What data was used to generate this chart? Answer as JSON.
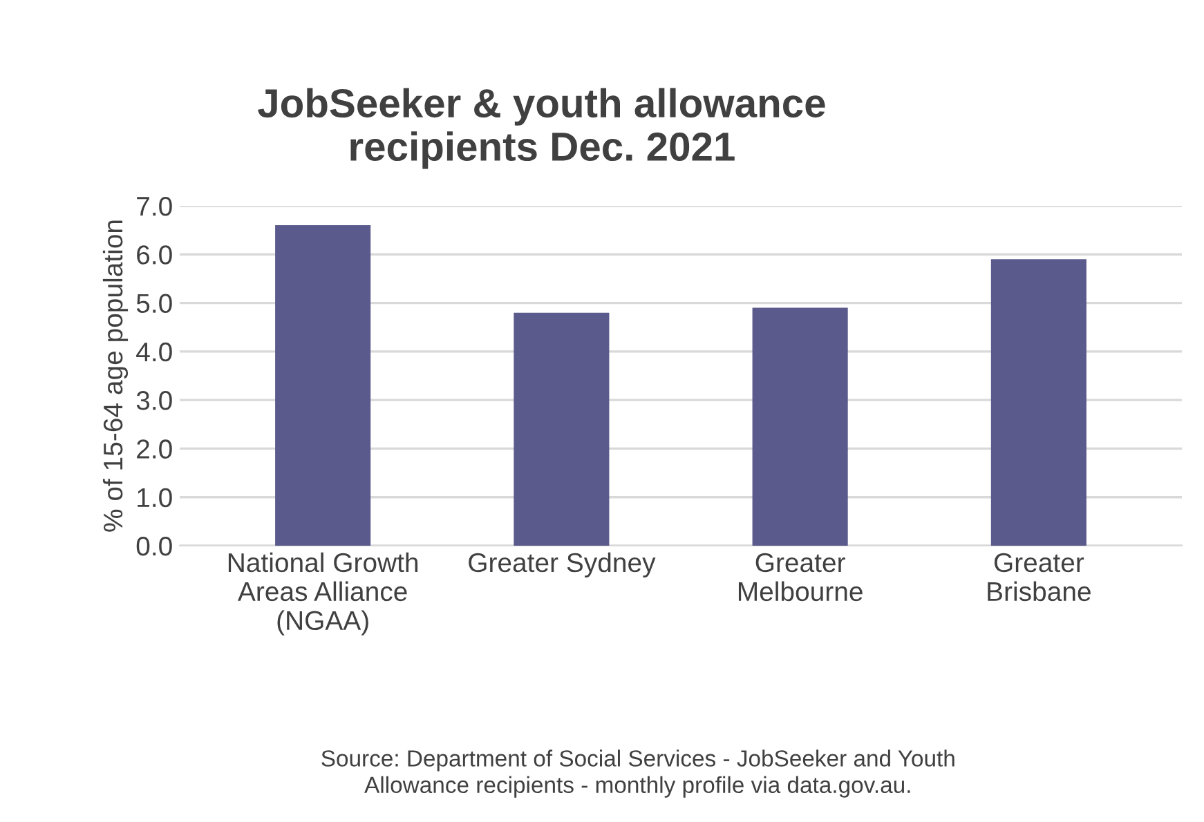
{
  "chart_data": {
    "type": "bar",
    "title": "JobSeeker & youth allowance\nrecipients Dec. 2021",
    "ylabel": "% of 15-64 age population",
    "categories": [
      "National Growth\nAreas Alliance\n(NGAA)",
      "Greater Sydney",
      "Greater\nMelbourne",
      "Greater\nBrisbane"
    ],
    "values": [
      6.6,
      4.8,
      4.9,
      5.9
    ],
    "color": "#5a5a8c",
    "ylim": [
      0,
      7
    ],
    "yticks": [
      {
        "value": 0,
        "label": "0.0"
      },
      {
        "value": 1,
        "label": "1.0"
      },
      {
        "value": 2,
        "label": "2.0"
      },
      {
        "value": 3,
        "label": "3.0"
      },
      {
        "value": 4,
        "label": "4.0"
      },
      {
        "value": 5,
        "label": "5.0"
      },
      {
        "value": 6,
        "label": "6.0"
      },
      {
        "value": 7,
        "label": "7.0"
      }
    ],
    "grid": "y",
    "annotations": [
      "Source: Department of Social Services - JobSeeker and Youth\nAllowance recipients - monthly profile via data.gov.au."
    ]
  }
}
